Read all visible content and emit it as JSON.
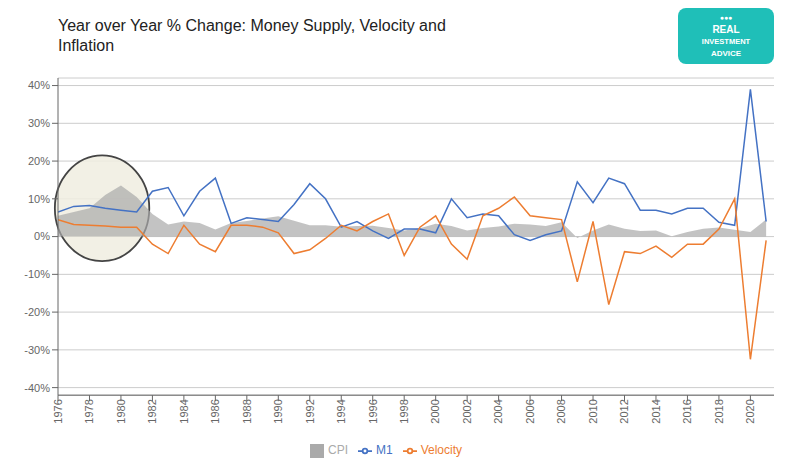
{
  "chart_data": {
    "type": "line",
    "title": "Year over Year % Change: Money Supply, Velocity and\nInflation",
    "x": [
      1976,
      1977,
      1978,
      1979,
      1980,
      1981,
      1982,
      1983,
      1984,
      1985,
      1986,
      1987,
      1988,
      1989,
      1990,
      1991,
      1992,
      1993,
      1994,
      1995,
      1996,
      1997,
      1998,
      1999,
      2000,
      2001,
      2002,
      2003,
      2004,
      2005,
      2006,
      2007,
      2008,
      2009,
      2010,
      2011,
      2012,
      2013,
      2014,
      2015,
      2016,
      2017,
      2018,
      2019,
      2020,
      2021
    ],
    "series": [
      {
        "name": "CPI",
        "type": "area",
        "color": "#aaaaaa",
        "values": [
          0.055,
          0.065,
          0.075,
          0.11,
          0.135,
          0.105,
          0.06,
          0.032,
          0.04,
          0.036,
          0.019,
          0.036,
          0.041,
          0.048,
          0.054,
          0.042,
          0.03,
          0.03,
          0.026,
          0.028,
          0.029,
          0.023,
          0.016,
          0.022,
          0.034,
          0.028,
          0.016,
          0.023,
          0.027,
          0.034,
          0.032,
          0.028,
          0.038,
          -0.004,
          0.016,
          0.032,
          0.021,
          0.015,
          0.016,
          0.001,
          0.012,
          0.021,
          0.024,
          0.018,
          0.012,
          0.045
        ]
      },
      {
        "name": "M1",
        "type": "line",
        "color": "#4472c4",
        "values": [
          0.065,
          0.08,
          0.082,
          0.075,
          0.07,
          0.065,
          0.12,
          0.13,
          0.055,
          0.12,
          0.155,
          0.035,
          0.05,
          0.045,
          0.04,
          0.085,
          0.14,
          0.1,
          0.025,
          0.04,
          0.015,
          -0.005,
          0.02,
          0.02,
          0.01,
          0.1,
          0.05,
          0.06,
          0.055,
          0.005,
          -0.01,
          0.005,
          0.015,
          0.145,
          0.09,
          0.155,
          0.14,
          0.07,
          0.07,
          0.06,
          0.075,
          0.075,
          0.038,
          0.03,
          0.39,
          0.04
        ]
      },
      {
        "name": "Velocity",
        "type": "line",
        "color": "#ed7d31",
        "values": [
          0.045,
          0.032,
          0.03,
          0.028,
          0.025,
          0.025,
          -0.02,
          -0.045,
          0.03,
          -0.02,
          -0.04,
          0.03,
          0.03,
          0.025,
          0.01,
          -0.045,
          -0.035,
          -0.005,
          0.03,
          0.015,
          0.04,
          0.06,
          -0.05,
          0.025,
          0.055,
          -0.02,
          -0.06,
          0.055,
          0.075,
          0.105,
          0.055,
          0.05,
          0.045,
          -0.12,
          0.04,
          -0.18,
          -0.04,
          -0.045,
          -0.025,
          -0.055,
          -0.02,
          -0.02,
          0.02,
          0.1,
          -0.325,
          -0.01
        ]
      }
    ],
    "xlim": [
      1976,
      2021.5
    ],
    "xticks": [
      1976,
      1978,
      1980,
      1982,
      1984,
      1986,
      1988,
      1990,
      1992,
      1994,
      1996,
      1998,
      2000,
      2002,
      2004,
      2006,
      2008,
      2010,
      2012,
      2014,
      2016,
      2018,
      2020
    ],
    "ylim": [
      -0.42,
      0.42
    ],
    "yticks": [
      {
        "value": -0.4,
        "label": "-40%"
      },
      {
        "value": -0.3,
        "label": "-30%"
      },
      {
        "value": -0.2,
        "label": "-20%"
      },
      {
        "value": -0.1,
        "label": "-10%"
      },
      {
        "value": 0.0,
        "label": "0%"
      },
      {
        "value": 0.1,
        "label": "10%"
      },
      {
        "value": 0.2,
        "label": "20%"
      },
      {
        "value": 0.3,
        "label": "30%"
      },
      {
        "value": 0.4,
        "label": "40%"
      }
    ],
    "grid": "y",
    "legend": "bottom",
    "ellipse": {
      "cx": 1978.8,
      "cy": 0.075,
      "rx": 3.0,
      "ry": 0.14
    },
    "annotations": [
      "●●●",
      "REAL",
      "INVESTMENT",
      "ADVICE"
    ]
  }
}
